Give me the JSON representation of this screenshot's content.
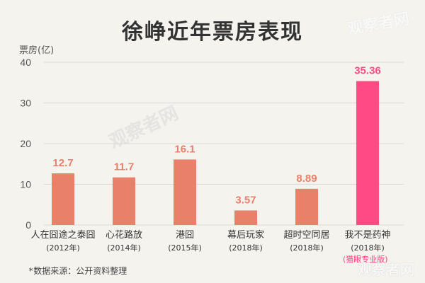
{
  "title": "徐峥近年票房表现",
  "source_note": "*数据来源：公开资料整理",
  "watermarks": [
    "观察者网",
    "观察者网",
    "观察者网"
  ],
  "credit": "(猫眼专业版)",
  "colors": {
    "bar": "#e8806a",
    "highlight_bar": "#ff4a86",
    "value_label": "#e8806a",
    "highlight_label": "#ff4a86",
    "grid": "#d8d8d8",
    "background": "#f4f3ee"
  },
  "chart_data": {
    "type": "bar",
    "title": "徐峥近年票房表现",
    "ylabel": "票房(亿)",
    "xlabel": "",
    "ylim": [
      0,
      40
    ],
    "yticks": [
      0,
      10,
      20,
      30,
      40
    ],
    "grid": true,
    "categories": [
      "人在囧途之泰囧",
      "心花路放",
      "港囧",
      "幕后玩家",
      "超时空同居",
      "我不是药神"
    ],
    "years": [
      "(2012年)",
      "(2014年)",
      "(2015年)",
      "(2018年)",
      "(2018年)",
      "(2018年)"
    ],
    "values": [
      12.7,
      11.7,
      16.1,
      3.57,
      8.89,
      35.36
    ],
    "value_labels": [
      "12.7",
      "11.7",
      "16.1",
      "3.57",
      "8.89",
      "35.36"
    ],
    "highlight_index": 5
  }
}
